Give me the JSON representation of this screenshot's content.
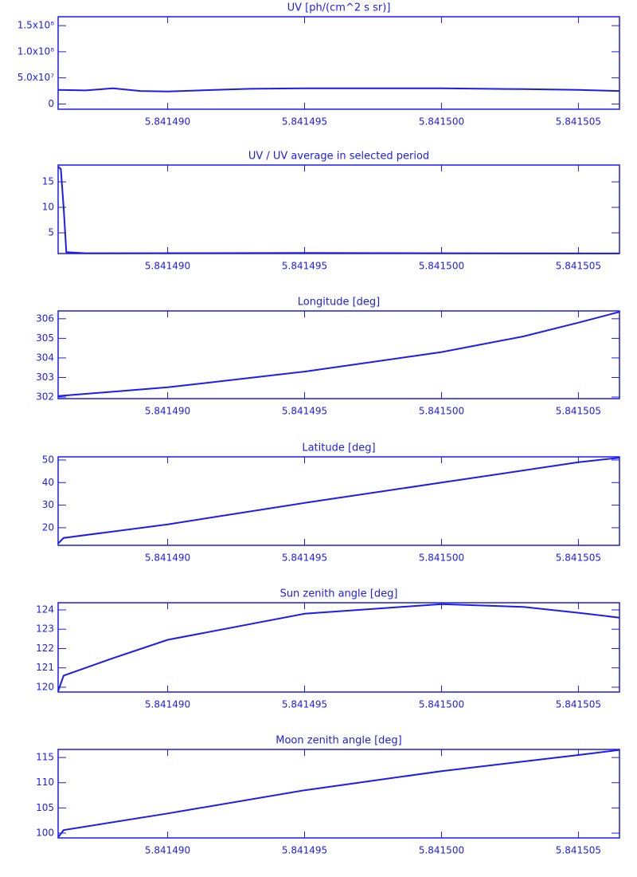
{
  "chart_data": [
    {
      "type": "line",
      "title": "UV [ph/(cm^2 s sr)]",
      "color": "#1c1cf0",
      "x": [
        5.841486,
        5.841487,
        5.841488,
        5.841489,
        5.84149,
        5.841493,
        5.841495,
        5.8415,
        5.841503,
        5.841505,
        5.8415065
      ],
      "values": [
        27000000,
        26000000,
        30000000,
        25000000,
        24000000,
        29000000,
        30000000,
        30000000,
        28500000,
        27000000,
        25000000
      ],
      "xlim": [
        5.841486,
        5.8415065
      ],
      "ylim": [
        -10000000,
        167000000
      ],
      "xticks": [
        {
          "value": 5.84149,
          "label": "5.841490"
        },
        5.841495,
        {
          "value": 5.8415,
          "label": "5.841500"
        },
        5.841505
      ],
      "yticks": [
        0,
        {
          "value": 50000000,
          "label": "5.0x10⁷"
        },
        {
          "value": 100000000,
          "label": "1.0x10⁸"
        },
        {
          "value": 150000000,
          "label": "1.5x10⁸"
        }
      ]
    },
    {
      "type": "line",
      "title": "UV / UV average in selected period",
      "color": "#1c1cf0",
      "x": [
        5.841486,
        5.8414861,
        5.8414862,
        5.8414863,
        5.841487,
        5.841495,
        5.8415,
        5.8415065
      ],
      "values": [
        18,
        17.5,
        10,
        1.2,
        1.0,
        1.05,
        1.0,
        0.95
      ],
      "xlim": [
        5.841486,
        5.8415065
      ],
      "ylim": [
        0.94,
        18.3
      ],
      "xticks": [
        {
          "value": 5.84149,
          "label": "5.841490"
        },
        5.841495,
        {
          "value": 5.8415,
          "label": "5.841500"
        },
        5.841505
      ],
      "yticks": [
        5,
        10,
        15
      ]
    },
    {
      "type": "line",
      "title": "Longitude [deg]",
      "color": "#1c1cf0",
      "x": [
        5.841486,
        5.84149,
        5.841495,
        5.8415,
        5.841503,
        5.841505,
        5.8415065
      ],
      "values": [
        302.05,
        302.5,
        303.3,
        304.3,
        305.1,
        305.8,
        306.35
      ],
      "xlim": [
        5.841486,
        5.8415065
      ],
      "ylim": [
        301.92,
        306.4
      ],
      "xticks": [
        {
          "value": 5.84149,
          "label": "5.841490"
        },
        5.841495,
        {
          "value": 5.8415,
          "label": "5.841500"
        },
        5.841505
      ],
      "yticks": [
        302,
        303,
        304,
        305,
        306
      ]
    },
    {
      "type": "line",
      "title": "Latitude [deg]",
      "color": "#1c1cf0",
      "x": [
        5.841486,
        5.8414862,
        5.84149,
        5.841495,
        5.8415,
        5.841505,
        5.8415065
      ],
      "values": [
        13,
        15.5,
        21.5,
        31,
        40,
        49,
        51
      ],
      "xlim": [
        5.841486,
        5.8415065
      ],
      "ylim": [
        12.2,
        51.4
      ],
      "xticks": [
        {
          "value": 5.84149,
          "label": "5.841490"
        },
        5.841495,
        {
          "value": 5.8415,
          "label": "5.841500"
        },
        5.841505
      ],
      "yticks": [
        20,
        30,
        40,
        50
      ]
    },
    {
      "type": "line",
      "title": "Sun zenith angle [deg]",
      "color": "#1c1cf0",
      "x": [
        5.841486,
        5.8414862,
        5.841488,
        5.84149,
        5.841495,
        5.8415,
        5.841503,
        5.841505,
        5.8415065
      ],
      "values": [
        119.8,
        120.6,
        121.5,
        122.45,
        123.8,
        124.3,
        124.15,
        123.85,
        123.6
      ],
      "xlim": [
        5.841486,
        5.8415065
      ],
      "ylim": [
        119.75,
        124.37
      ],
      "xticks": [
        {
          "value": 5.84149,
          "label": "5.841490"
        },
        5.841495,
        {
          "value": 5.8415,
          "label": "5.841500"
        },
        5.841505
      ],
      "yticks": [
        120,
        121,
        122,
        123,
        124
      ]
    },
    {
      "type": "line",
      "title": "Moon zenith angle [deg]",
      "color": "#1c1cf0",
      "x": [
        5.841486,
        5.8414862,
        5.84149,
        5.841495,
        5.8415,
        5.841505,
        5.8415065
      ],
      "values": [
        99.2,
        100.6,
        103.9,
        108.5,
        112.3,
        115.5,
        116.5
      ],
      "xlim": [
        5.841486,
        5.8415065
      ],
      "ylim": [
        99.05,
        116.6
      ],
      "xticks": [
        {
          "value": 5.84149,
          "label": "5.841490"
        },
        5.841495,
        {
          "value": 5.8415,
          "label": "5.841500"
        },
        5.841505
      ],
      "yticks": [
        100,
        105,
        110,
        115
      ]
    }
  ]
}
